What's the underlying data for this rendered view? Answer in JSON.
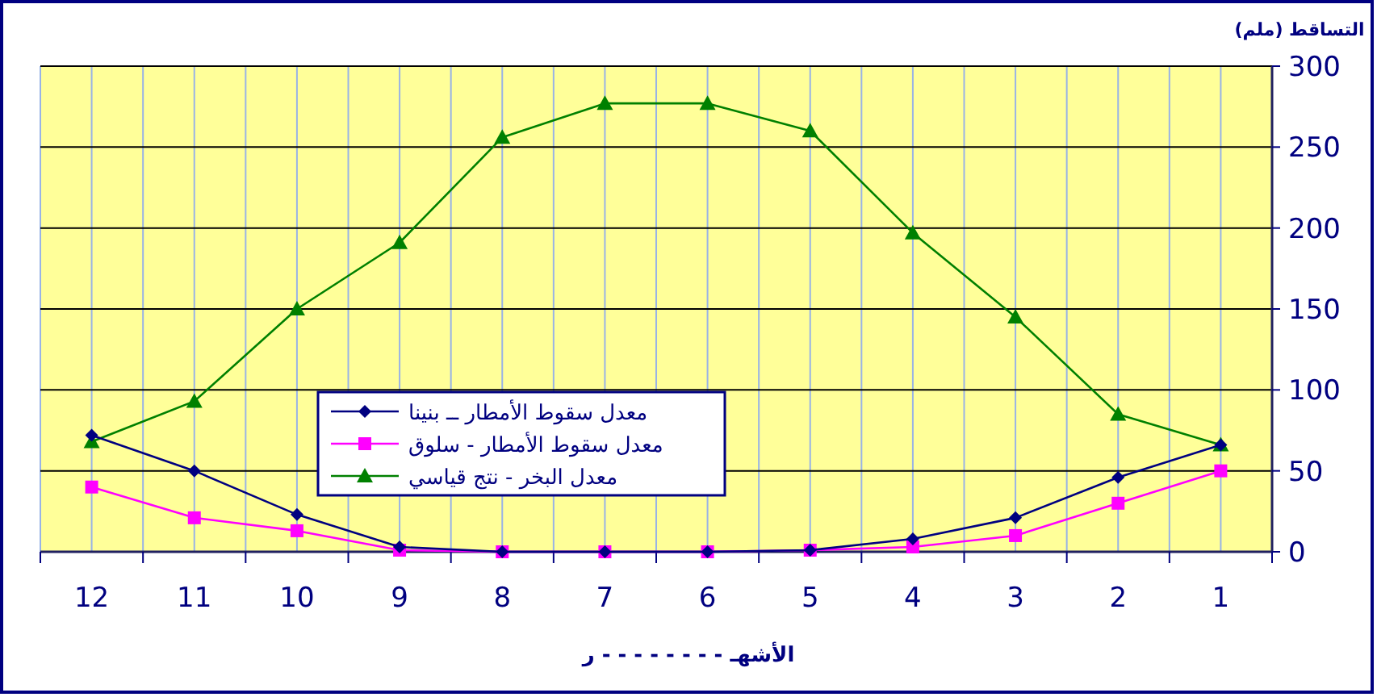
{
  "chart_data": {
    "type": "line",
    "ylabel": "التساقط (ملم)",
    "xlabel": "الأشهـ - - - - - - - - ر",
    "categories": [
      "12",
      "11",
      "10",
      "9",
      "8",
      "7",
      "6",
      "5",
      "4",
      "3",
      "2",
      "1"
    ],
    "series": [
      {
        "name": "معدل سقوط الأمطار ــ بنينا",
        "color": "#000080",
        "marker": "diamond",
        "values": [
          72,
          50,
          23,
          3,
          0,
          0,
          0,
          1,
          8,
          21,
          46,
          66
        ]
      },
      {
        "name": "معدل سقوط الأمطار  - سلوق",
        "color": "#ff00ff",
        "marker": "square",
        "values": [
          40,
          21,
          13,
          1,
          0,
          0,
          0,
          1,
          3,
          10,
          30,
          50
        ]
      },
      {
        "name": "معدل البخر   - نتج قياسي",
        "color": "#008000",
        "marker": "triangle",
        "values": [
          68,
          93,
          150,
          191,
          256,
          277,
          277,
          260,
          197,
          145,
          85,
          66
        ]
      }
    ],
    "ylim": [
      0,
      300
    ],
    "yticks": [
      0,
      50,
      100,
      150,
      200,
      250,
      300
    ],
    "grid": true,
    "legend": "bottom"
  }
}
